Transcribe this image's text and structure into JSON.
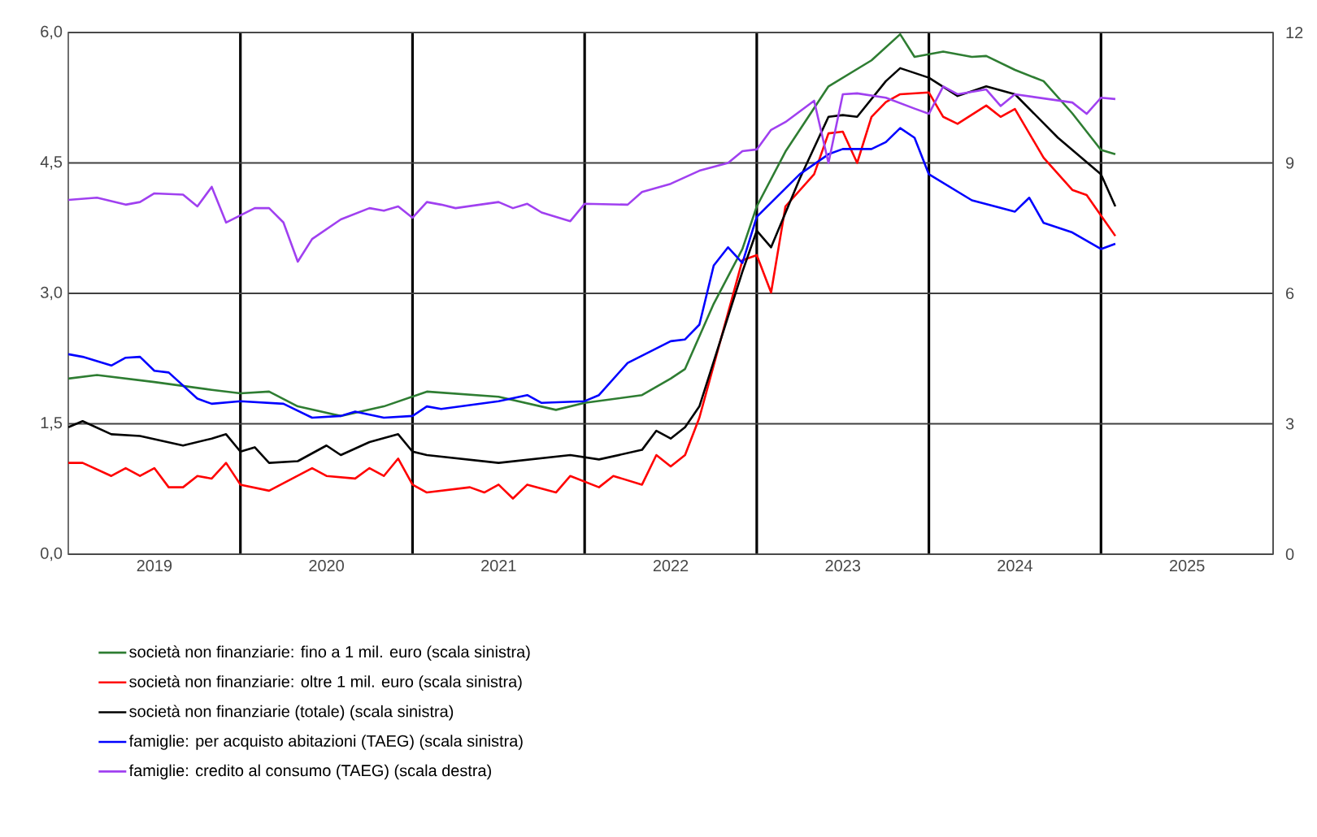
{
  "chart_data": {
    "type": "line",
    "xlim": [
      "2019-01",
      "2026-01"
    ],
    "xticks": [
      {
        "value": "2019-07",
        "label": "2019"
      },
      {
        "value": "2020-01",
        "label": null
      },
      {
        "value": "2020-07",
        "label": "2020"
      },
      {
        "value": "2021-01",
        "label": null
      },
      {
        "value": "2021-07",
        "label": "2021"
      },
      {
        "value": "2022-01",
        "label": null
      },
      {
        "value": "2022-07",
        "label": "2022"
      },
      {
        "value": "2023-01",
        "label": null
      },
      {
        "value": "2023-07",
        "label": "2023"
      },
      {
        "value": "2024-01",
        "label": null
      },
      {
        "value": "2024-07",
        "label": "2024"
      },
      {
        "value": "2025-01",
        "label": null
      },
      {
        "value": "2025-07",
        "label": "2025"
      }
    ],
    "ylim": [
      0,
      6
    ],
    "yticks": [
      {
        "value": 0,
        "label": "0,0"
      },
      {
        "value": 1.5,
        "label": "1,5"
      },
      {
        "value": 3,
        "label": "3,0"
      },
      {
        "value": 4.5,
        "label": "4,5"
      },
      {
        "value": 6,
        "label": "6,0"
      }
    ],
    "y2lim": [
      0,
      12
    ],
    "y2ticks": [
      0,
      3,
      6,
      9,
      12
    ],
    "grid": true,
    "legend": "bottom",
    "series": [
      {
        "name": "società non finanziarie: fino a 1 mil. euro (scala sinistra)",
        "color": "#2e7d32",
        "x": [
          "2019-01",
          "2019-03",
          "2019-07",
          "2019-11",
          "2020-01",
          "2020-03",
          "2020-05",
          "2020-08",
          "2020-11",
          "2021-02",
          "2021-07",
          "2021-11",
          "2022-01",
          "2022-05",
          "2022-07",
          "2022-08",
          "2022-10",
          "2022-12",
          "2023-01",
          "2023-03",
          "2023-06",
          "2023-09",
          "2023-11",
          "2023-12",
          "2024-02",
          "2024-04",
          "2024-05",
          "2024-07",
          "2024-09",
          "2024-11",
          "2025-01",
          "2025-02"
        ],
        "values": [
          2.02,
          2.06,
          1.98,
          1.89,
          1.85,
          1.87,
          1.7,
          1.59,
          1.7,
          1.87,
          1.81,
          1.66,
          1.74,
          1.83,
          2.02,
          2.13,
          2.88,
          3.51,
          4.0,
          4.63,
          5.38,
          5.68,
          5.98,
          5.72,
          5.78,
          5.72,
          5.73,
          5.57,
          5.44,
          5.07,
          4.65,
          4.6
        ]
      },
      {
        "name": "società non finanziarie: oltre 1 mil. euro (scala sinistra)",
        "color": "#ff0000",
        "x": [
          "2019-01",
          "2019-02",
          "2019-04",
          "2019-05",
          "2019-06",
          "2019-07",
          "2019-08",
          "2019-09",
          "2019-10",
          "2019-11",
          "2019-12",
          "2020-01",
          "2020-03",
          "2020-06",
          "2020-07",
          "2020-09",
          "2020-10",
          "2020-11",
          "2020-12",
          "2021-01",
          "2021-02",
          "2021-05",
          "2021-06",
          "2021-07",
          "2021-08",
          "2021-09",
          "2021-11",
          "2021-12",
          "2022-02",
          "2022-03",
          "2022-05",
          "2022-06",
          "2022-07",
          "2022-08",
          "2022-09",
          "2022-12",
          "2023-01",
          "2023-02",
          "2023-03",
          "2023-05",
          "2023-06",
          "2023-07",
          "2023-08",
          "2023-09",
          "2023-10",
          "2023-11",
          "2024-01",
          "2024-02",
          "2024-03",
          "2024-05",
          "2024-06",
          "2024-07",
          "2024-09",
          "2024-11",
          "2024-12",
          "2025-02"
        ],
        "values": [
          1.05,
          1.05,
          0.9,
          0.99,
          0.9,
          0.99,
          0.77,
          0.77,
          0.9,
          0.87,
          1.05,
          0.8,
          0.73,
          0.99,
          0.9,
          0.87,
          0.99,
          0.9,
          1.1,
          0.8,
          0.71,
          0.77,
          0.71,
          0.8,
          0.64,
          0.8,
          0.71,
          0.9,
          0.77,
          0.9,
          0.8,
          1.14,
          1.01,
          1.14,
          1.57,
          3.38,
          3.44,
          3.01,
          4.0,
          4.37,
          4.84,
          4.86,
          4.5,
          5.03,
          5.2,
          5.29,
          5.31,
          5.03,
          4.95,
          5.16,
          5.03,
          5.12,
          4.56,
          4.19,
          4.13,
          3.66
        ]
      },
      {
        "name": "società non finanziarie (totale) (scala sinistra)",
        "color": "#000000",
        "x": [
          "2019-01",
          "2019-02",
          "2019-04",
          "2019-06",
          "2019-09",
          "2019-11",
          "2019-12",
          "2020-01",
          "2020-02",
          "2020-03",
          "2020-05",
          "2020-07",
          "2020-08",
          "2020-10",
          "2020-12",
          "2021-01",
          "2021-02",
          "2021-07",
          "2021-12",
          "2022-02",
          "2022-05",
          "2022-06",
          "2022-07",
          "2022-08",
          "2022-09",
          "2022-12",
          "2023-01",
          "2023-02",
          "2023-04",
          "2023-06",
          "2023-07",
          "2023-08",
          "2023-10",
          "2023-11",
          "2024-01",
          "2024-03",
          "2024-05",
          "2024-07",
          "2024-10",
          "2025-01",
          "2025-02"
        ],
        "values": [
          1.46,
          1.53,
          1.38,
          1.36,
          1.25,
          1.33,
          1.38,
          1.18,
          1.23,
          1.05,
          1.07,
          1.25,
          1.14,
          1.29,
          1.38,
          1.18,
          1.14,
          1.05,
          1.14,
          1.09,
          1.2,
          1.42,
          1.33,
          1.46,
          1.7,
          3.25,
          3.72,
          3.53,
          4.32,
          5.03,
          5.05,
          5.03,
          5.44,
          5.59,
          5.48,
          5.27,
          5.38,
          5.29,
          4.79,
          4.37,
          4.0
        ]
      },
      {
        "name": "famiglie: per acquisto abitazioni (TAEG) (scala sinistra)",
        "color": "#0000ff",
        "x": [
          "2019-01",
          "2019-02",
          "2019-04",
          "2019-05",
          "2019-06",
          "2019-07",
          "2019-08",
          "2019-10",
          "2019-11",
          "2020-01",
          "2020-04",
          "2020-06",
          "2020-08",
          "2020-09",
          "2020-11",
          "2021-01",
          "2021-02",
          "2021-03",
          "2021-07",
          "2021-09",
          "2021-10",
          "2022-01",
          "2022-02",
          "2022-04",
          "2022-07",
          "2022-08",
          "2022-09",
          "2022-10",
          "2022-11",
          "2022-12",
          "2023-01",
          "2023-04",
          "2023-06",
          "2023-07",
          "2023-09",
          "2023-10",
          "2023-11",
          "2023-12",
          "2024-01",
          "2024-04",
          "2024-07",
          "2024-08",
          "2024-09",
          "2024-11",
          "2025-01",
          "2025-02"
        ],
        "values": [
          2.3,
          2.27,
          2.17,
          2.26,
          2.27,
          2.11,
          2.09,
          1.79,
          1.73,
          1.76,
          1.73,
          1.57,
          1.59,
          1.64,
          1.57,
          1.59,
          1.7,
          1.67,
          1.76,
          1.83,
          1.74,
          1.76,
          1.83,
          2.2,
          2.45,
          2.47,
          2.64,
          3.32,
          3.53,
          3.35,
          3.88,
          4.37,
          4.6,
          4.66,
          4.66,
          4.74,
          4.9,
          4.79,
          4.37,
          4.07,
          3.94,
          4.1,
          3.81,
          3.7,
          3.51,
          3.57
        ]
      },
      {
        "name": "famiglie: credito al consumo (TAEG) (scala destra)",
        "color": "#a040f0",
        "axis": "y2",
        "x": [
          "2019-01",
          "2019-03",
          "2019-05",
          "2019-06",
          "2019-07",
          "2019-09",
          "2019-10",
          "2019-11",
          "2019-12",
          "2020-02",
          "2020-03",
          "2020-04",
          "2020-05",
          "2020-06",
          "2020-08",
          "2020-10",
          "2020-11",
          "2020-12",
          "2021-01",
          "2021-02",
          "2021-03",
          "2021-04",
          "2021-07",
          "2021-08",
          "2021-09",
          "2021-10",
          "2021-12",
          "2022-01",
          "2022-04",
          "2022-05",
          "2022-07",
          "2022-09",
          "2022-11",
          "2022-12",
          "2023-01",
          "2023-02",
          "2023-03",
          "2023-05",
          "2023-06",
          "2023-07",
          "2023-08",
          "2023-10",
          "2023-12",
          "2024-01",
          "2024-02",
          "2024-03",
          "2024-05",
          "2024-06",
          "2024-07",
          "2024-11",
          "2024-12",
          "2025-01",
          "2025-02"
        ],
        "values": [
          8.15,
          8.2,
          8.04,
          8.1,
          8.3,
          8.27,
          8.0,
          8.45,
          7.63,
          7.96,
          7.96,
          7.63,
          6.73,
          7.25,
          7.7,
          7.96,
          7.9,
          8.0,
          7.74,
          8.1,
          8.04,
          7.96,
          8.1,
          7.96,
          8.06,
          7.86,
          7.66,
          8.06,
          8.04,
          8.33,
          8.52,
          8.82,
          9.0,
          9.27,
          9.31,
          9.76,
          9.94,
          10.43,
          9.0,
          10.58,
          10.6,
          10.5,
          10.25,
          10.13,
          10.76,
          10.58,
          10.69,
          10.31,
          10.58,
          10.39,
          10.13,
          10.5,
          10.47
        ]
      }
    ]
  }
}
